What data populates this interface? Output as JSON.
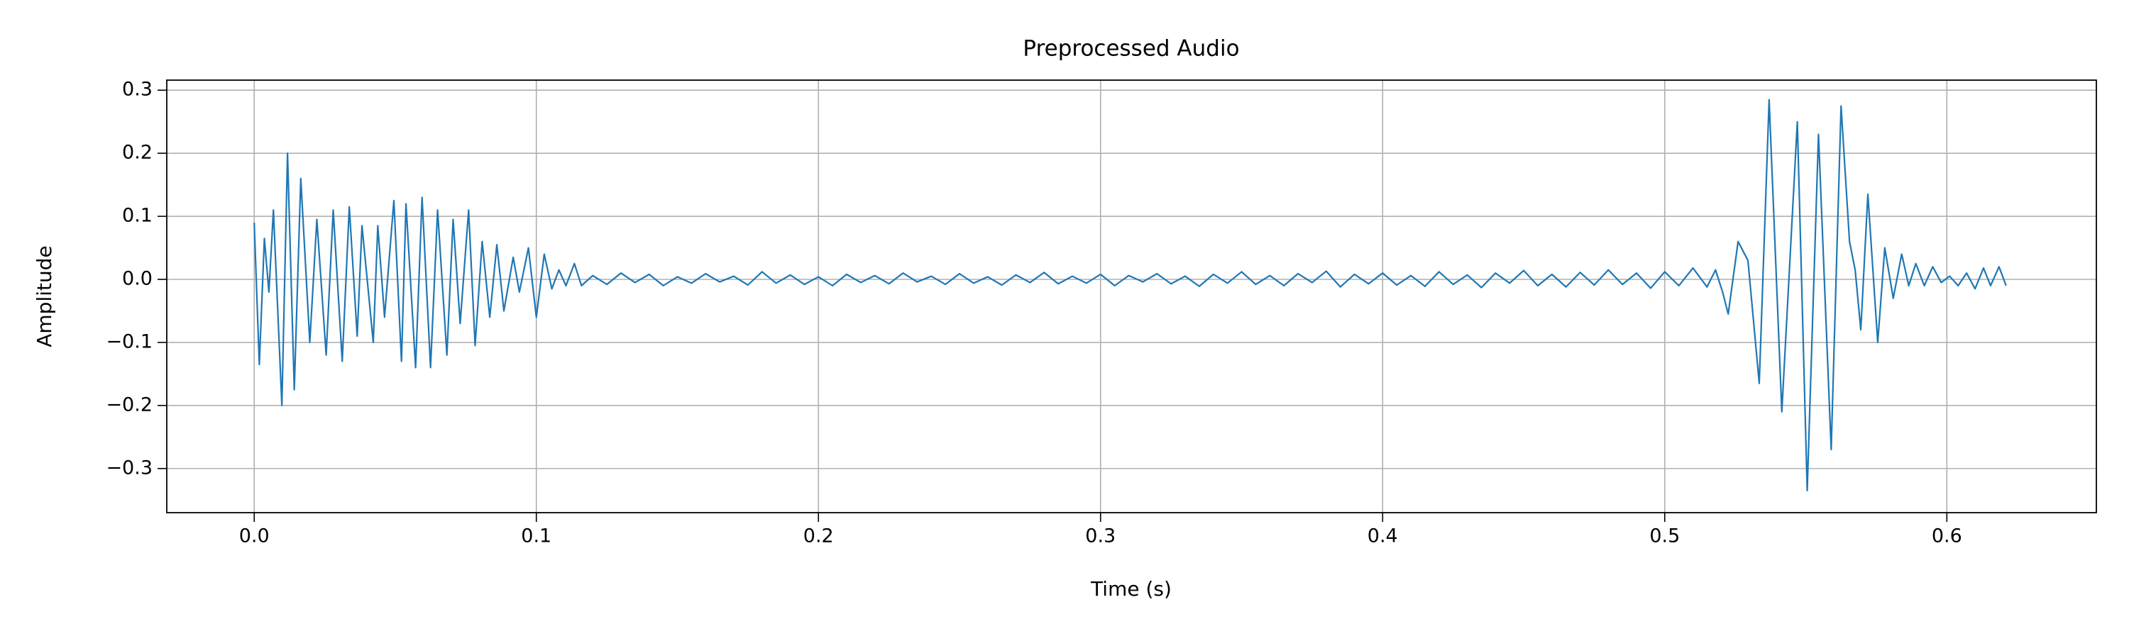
{
  "chart_data": {
    "type": "line",
    "title": "Preprocessed Audio",
    "xlabel": "Time (s)",
    "ylabel": "Amplitude",
    "color": "#1f77b4",
    "grid": true,
    "xlim": [
      -0.031,
      0.653
    ],
    "ylim": [
      -0.37,
      0.316
    ],
    "xticks": [
      {
        "value": 0,
        "label": "0.0"
      },
      0.1,
      0.2,
      0.3,
      0.4,
      0.5,
      0.6
    ],
    "yticks": [
      {
        "value": -0.3,
        "label": "−0.3"
      },
      {
        "value": -0.2,
        "label": "−0.2"
      },
      {
        "value": -0.1,
        "label": "−0.1"
      },
      {
        "value": 0,
        "label": "0.0"
      },
      0.1,
      0.2,
      0.3
    ],
    "x": [
      0,
      0.0018,
      0.0036,
      0.0052,
      0.0068,
      0.0098,
      0.0118,
      0.0142,
      0.0165,
      0.0197,
      0.0222,
      0.0255,
      0.028,
      0.0312,
      0.0337,
      0.0365,
      0.0382,
      0.0422,
      0.0438,
      0.0462,
      0.0495,
      0.0522,
      0.0538,
      0.0572,
      0.0595,
      0.0625,
      0.065,
      0.0683,
      0.0705,
      0.073,
      0.076,
      0.0783,
      0.0808,
      0.0835,
      0.086,
      0.0885,
      0.0918,
      0.094,
      0.0972,
      0.1,
      0.1028,
      0.1055,
      0.108,
      0.1105,
      0.1135,
      0.116,
      0.12,
      0.125,
      0.13,
      0.135,
      0.14,
      0.145,
      0.15,
      0.155,
      0.16,
      0.165,
      0.17,
      0.175,
      0.18,
      0.185,
      0.19,
      0.195,
      0.2,
      0.205,
      0.21,
      0.215,
      0.22,
      0.225,
      0.23,
      0.235,
      0.24,
      0.245,
      0.25,
      0.255,
      0.26,
      0.265,
      0.27,
      0.275,
      0.28,
      0.285,
      0.29,
      0.295,
      0.3,
      0.305,
      0.31,
      0.315,
      0.32,
      0.325,
      0.33,
      0.335,
      0.34,
      0.345,
      0.35,
      0.355,
      0.36,
      0.365,
      0.37,
      0.375,
      0.38,
      0.385,
      0.39,
      0.395,
      0.4,
      0.405,
      0.41,
      0.415,
      0.42,
      0.425,
      0.43,
      0.435,
      0.44,
      0.445,
      0.45,
      0.455,
      0.46,
      0.465,
      0.47,
      0.475,
      0.48,
      0.485,
      0.49,
      0.495,
      0.5,
      0.505,
      0.51,
      0.515,
      0.518,
      0.5205,
      0.5225,
      0.526,
      0.5295,
      0.5335,
      0.537,
      0.5415,
      0.547,
      0.5505,
      0.5545,
      0.559,
      0.5625,
      0.5655,
      0.5675,
      0.5695,
      0.572,
      0.5755,
      0.578,
      0.581,
      0.584,
      0.5865,
      0.589,
      0.592,
      0.595,
      0.598,
      0.601,
      0.604,
      0.607,
      0.61,
      0.613,
      0.6155,
      0.6185,
      0.621
    ],
    "values": [
      0.09,
      -0.135,
      0.065,
      -0.02,
      0.11,
      -0.2,
      0.2,
      -0.175,
      0.16,
      -0.1,
      0.095,
      -0.12,
      0.11,
      -0.13,
      0.115,
      -0.09,
      0.085,
      -0.1,
      0.085,
      -0.06,
      0.125,
      -0.13,
      0.12,
      -0.14,
      0.13,
      -0.14,
      0.11,
      -0.12,
      0.095,
      -0.07,
      0.11,
      -0.105,
      0.06,
      -0.06,
      0.055,
      -0.05,
      0.035,
      -0.02,
      0.05,
      -0.06,
      0.04,
      -0.015,
      0.015,
      -0.01,
      0.025,
      -0.01,
      0.006,
      -0.008,
      0.01,
      -0.005,
      0.008,
      -0.01,
      0.004,
      -0.006,
      0.009,
      -0.004,
      0.005,
      -0.009,
      0.012,
      -0.006,
      0.007,
      -0.008,
      0.004,
      -0.01,
      0.008,
      -0.005,
      0.006,
      -0.007,
      0.01,
      -0.004,
      0.005,
      -0.008,
      0.009,
      -0.006,
      0.004,
      -0.009,
      0.007,
      -0.005,
      0.011,
      -0.007,
      0.005,
      -0.006,
      0.008,
      -0.01,
      0.006,
      -0.004,
      0.009,
      -0.007,
      0.005,
      -0.011,
      0.008,
      -0.006,
      0.012,
      -0.008,
      0.006,
      -0.01,
      0.009,
      -0.005,
      0.013,
      -0.012,
      0.008,
      -0.007,
      0.01,
      -0.009,
      0.006,
      -0.011,
      0.012,
      -0.008,
      0.007,
      -0.013,
      0.01,
      -0.006,
      0.014,
      -0.01,
      0.008,
      -0.012,
      0.011,
      -0.009,
      0.015,
      -0.008,
      0.01,
      -0.014,
      0.012,
      -0.01,
      0.018,
      -0.012,
      0.015,
      -0.02,
      -0.055,
      0.06,
      0.03,
      -0.165,
      0.285,
      -0.21,
      0.25,
      -0.335,
      0.23,
      -0.27,
      0.275,
      0.06,
      0.015,
      -0.08,
      0.135,
      -0.1,
      0.05,
      -0.03,
      0.04,
      -0.01,
      0.025,
      -0.01,
      0.02,
      -0.005,
      0.005,
      -0.01,
      0.01,
      -0.015,
      0.018,
      -0.01,
      0.02,
      -0.01
    ]
  }
}
